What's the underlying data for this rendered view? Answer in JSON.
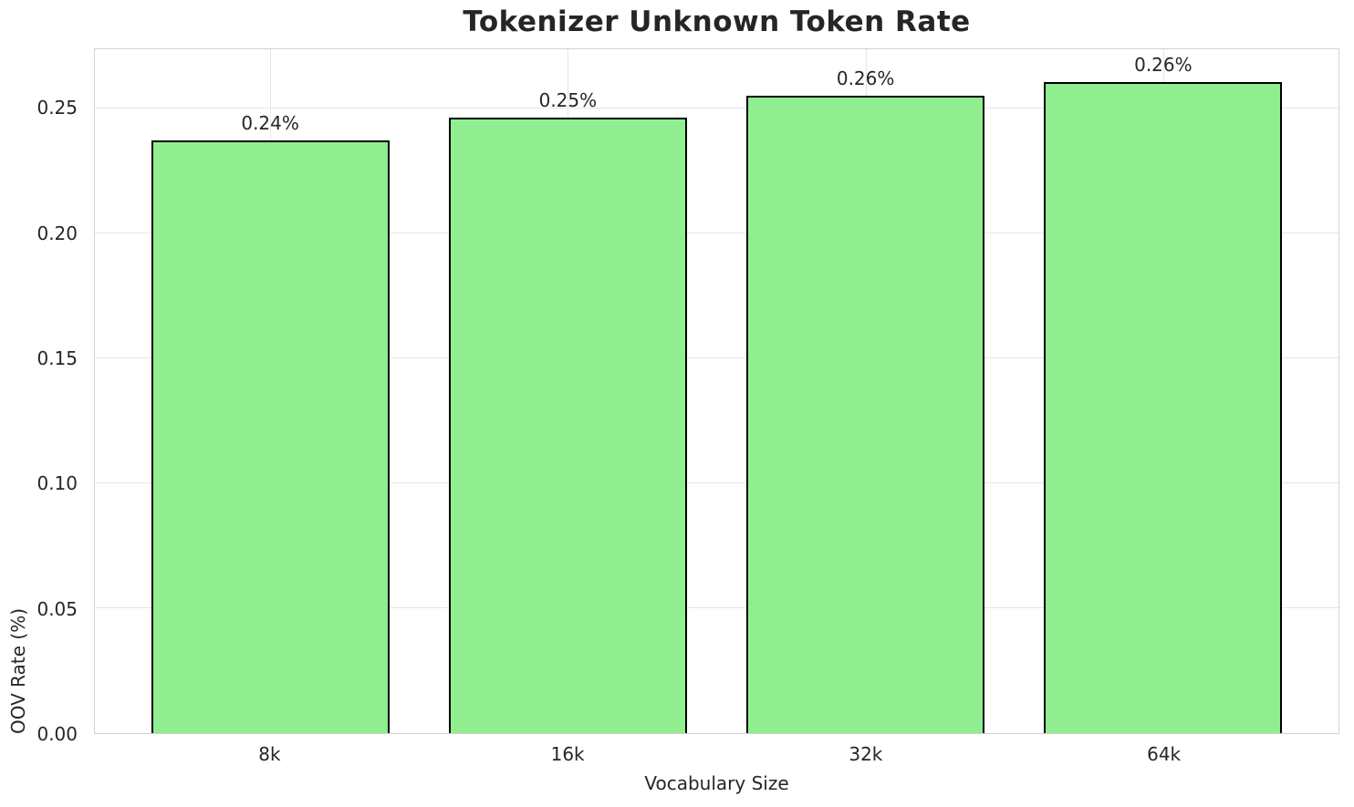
{
  "chart_data": {
    "type": "bar",
    "title": "Tokenizer Unknown Token Rate",
    "xlabel": "Vocabulary Size",
    "ylabel": "OOV Rate (%)",
    "categories": [
      "8k",
      "16k",
      "32k",
      "64k"
    ],
    "values": [
      0.2372,
      0.2465,
      0.2552,
      0.2608
    ],
    "bar_labels": [
      "0.24%",
      "0.25%",
      "0.26%",
      "0.26%"
    ],
    "y_ticks": [
      "0.00",
      "0.05",
      "0.10",
      "0.15",
      "0.20",
      "0.25"
    ],
    "y_tick_values": [
      0,
      0.05,
      0.1,
      0.15,
      0.2,
      0.25
    ],
    "ylim": [
      0,
      0.2738
    ],
    "grid": true,
    "legend": "none",
    "colors": {
      "bar_fill": "#90EE90",
      "bar_edge": "#000000",
      "grid": "#e6e6e6",
      "spine": "#d2d2d2",
      "text": "#262626",
      "background": "#ffffff"
    }
  }
}
